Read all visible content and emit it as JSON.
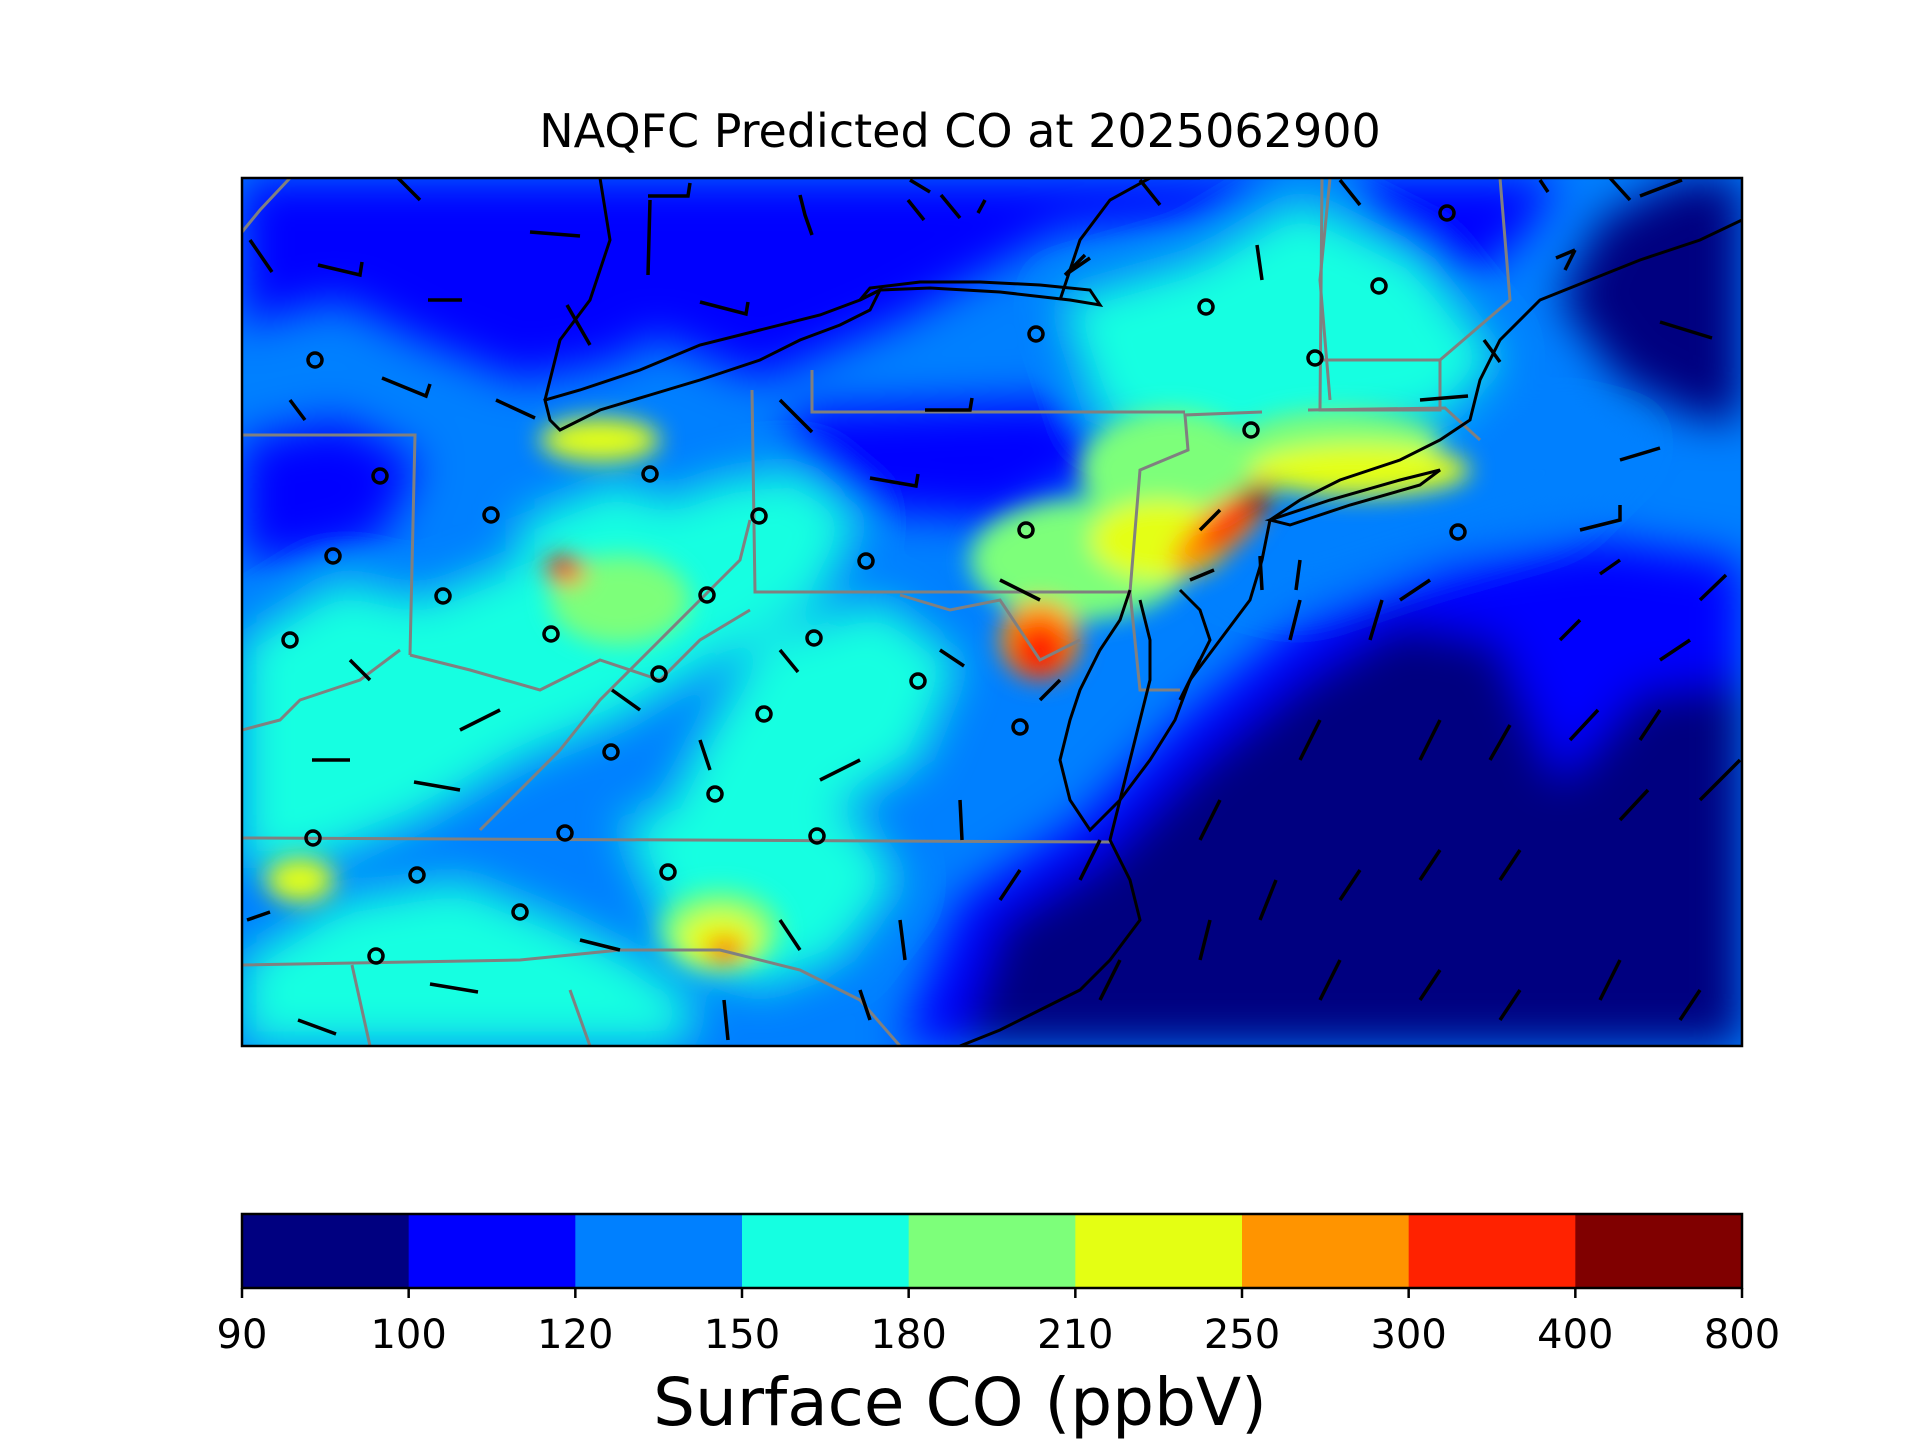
{
  "title": "NAQFC Predicted CO at 2025062900",
  "colorbar": {
    "label": "Surface CO (ppbV)",
    "ticks": [
      "90",
      "100",
      "120",
      "150",
      "180",
      "210",
      "250",
      "300",
      "400",
      "800"
    ],
    "colors": [
      "#000080",
      "#0000ff",
      "#0080ff",
      "#15ffe1",
      "#7dff7a",
      "#e4ff13",
      "#ff9400",
      "#ff2200",
      "#800000"
    ]
  },
  "map": {
    "colormap": "jet",
    "land_boundary_color": "#000000",
    "state_boundary_color": "#808080",
    "marker_style": "open-circle",
    "wind_symbol": "wind-barb"
  }
}
